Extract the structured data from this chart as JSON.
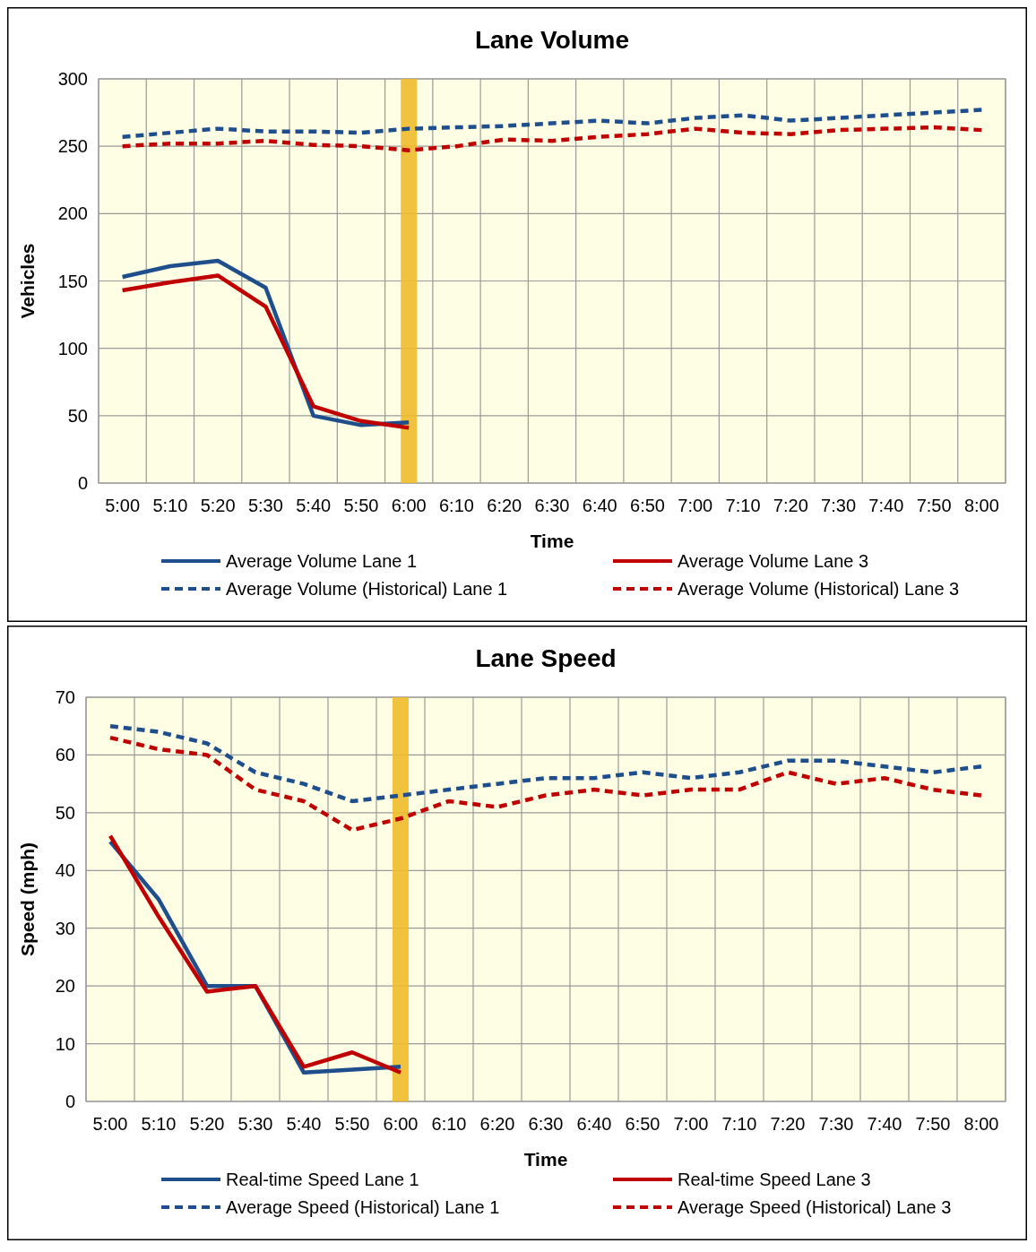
{
  "chart_data": [
    {
      "type": "line",
      "title": "Lane Volume",
      "xlabel": "Time",
      "ylabel": "Vehicles",
      "categories": [
        "5:00",
        "5:10",
        "5:20",
        "5:30",
        "5:40",
        "5:50",
        "6:00",
        "6:10",
        "6:20",
        "6:30",
        "6:40",
        "6:50",
        "7:00",
        "7:10",
        "7:20",
        "7:30",
        "7:40",
        "7:50",
        "8:00"
      ],
      "ylim": [
        0,
        300
      ],
      "yticks": [
        0,
        50,
        100,
        150,
        200,
        250,
        300
      ],
      "grid": true,
      "legend": "bottom",
      "marker": "none",
      "ref_lines": [
        {
          "axis": "x",
          "value": "6:00",
          "color": "#f0bc2c"
        }
      ],
      "series": [
        {
          "name": "Average Volume Lane 1",
          "color": "#1f4e8c",
          "line_style": "solid",
          "values": [
            153,
            161,
            165,
            145,
            50,
            43,
            45,
            null,
            null,
            null,
            null,
            null,
            null,
            null,
            null,
            null,
            null,
            null,
            null
          ]
        },
        {
          "name": "Average Volume Lane 3",
          "color": "#c00000",
          "line_style": "solid",
          "values": [
            143,
            149,
            154,
            131,
            57,
            46,
            41,
            null,
            null,
            null,
            null,
            null,
            null,
            null,
            null,
            null,
            null,
            null,
            null
          ]
        },
        {
          "name": "Average Volume (Historical) Lane 1",
          "color": "#1f4e8c",
          "line_style": "dashed",
          "values": [
            257,
            260,
            263,
            261,
            261,
            260,
            263,
            264,
            265,
            267,
            269,
            267,
            271,
            273,
            269,
            271,
            273,
            275,
            277
          ]
        },
        {
          "name": "Average Volume (Historical) Lane 3",
          "color": "#c00000",
          "line_style": "dashed",
          "values": [
            250,
            252,
            252,
            254,
            251,
            250,
            247,
            250,
            255,
            254,
            257,
            259,
            263,
            260,
            259,
            262,
            263,
            264,
            262
          ]
        }
      ]
    },
    {
      "type": "line",
      "title": "Lane Speed",
      "xlabel": "Time",
      "ylabel": "Speed (mph)",
      "categories": [
        "5:00",
        "5:10",
        "5:20",
        "5:30",
        "5:40",
        "5:50",
        "6:00",
        "6:10",
        "6:20",
        "6:30",
        "6:40",
        "6:50",
        "7:00",
        "7:10",
        "7:20",
        "7:30",
        "7:40",
        "7:50",
        "8:00"
      ],
      "ylim": [
        0,
        70
      ],
      "yticks": [
        0,
        10,
        20,
        30,
        40,
        50,
        60,
        70
      ],
      "grid": true,
      "legend": "bottom",
      "marker": "none",
      "ref_lines": [
        {
          "axis": "x",
          "value": "6:00",
          "color": "#f0bc2c"
        }
      ],
      "series": [
        {
          "name": "Real-time Speed Lane 1",
          "color": "#1f4e8c",
          "line_style": "solid",
          "values": [
            45,
            35,
            20,
            20,
            5,
            5.5,
            6,
            null,
            null,
            null,
            null,
            null,
            null,
            null,
            null,
            null,
            null,
            null,
            null
          ]
        },
        {
          "name": "Real-time Speed Lane 3",
          "color": "#c00000",
          "line_style": "solid",
          "values": [
            46,
            32,
            19,
            20,
            6,
            8.5,
            5,
            null,
            null,
            null,
            null,
            null,
            null,
            null,
            null,
            null,
            null,
            null,
            null
          ]
        },
        {
          "name": "Average Speed (Historical) Lane 1",
          "color": "#1f4e8c",
          "line_style": "dashed",
          "values": [
            65,
            64,
            62,
            57,
            55,
            52,
            53,
            54,
            55,
            56,
            56,
            57,
            56,
            57,
            59,
            59,
            58,
            57,
            58
          ]
        },
        {
          "name": "Average Speed (Historical) Lane 3",
          "color": "#c00000",
          "line_style": "dashed",
          "values": [
            63,
            61,
            60,
            54,
            52,
            47,
            49,
            52,
            51,
            53,
            54,
            53,
            54,
            54,
            57,
            55,
            56,
            54,
            53
          ]
        }
      ]
    }
  ]
}
